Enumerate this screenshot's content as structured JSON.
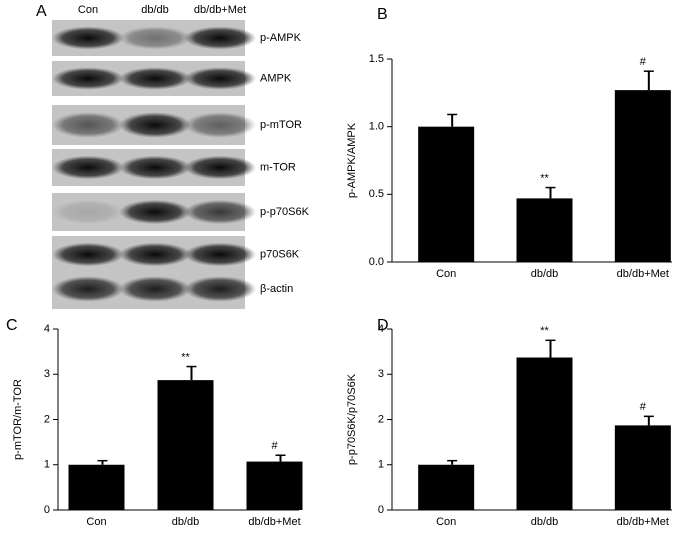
{
  "blot": {
    "panel_label": "A",
    "columns": [
      "Con",
      "db/db",
      "db/db+Met"
    ],
    "rows": [
      "p-AMPK",
      "AMPK",
      "p-mTOR",
      "m-TOR",
      "p-p70S6K",
      "p70S6K",
      "β-actin"
    ]
  },
  "chart_data": [
    {
      "type": "bar",
      "panel_label": "B",
      "ylabel": "p-AMPK/AMPK",
      "color": "#000000",
      "categories": [
        "Con",
        "db/db",
        "db/db+Met"
      ],
      "values": [
        1.0,
        0.47,
        1.27
      ],
      "errors": [
        0.09,
        0.08,
        0.14
      ],
      "annotations": [
        null,
        "**",
        "#"
      ],
      "ylim": [
        0,
        1.5
      ],
      "yticks": [
        {
          "value": 0,
          "label": "0.0"
        },
        {
          "value": 0.5,
          "label": "0.5"
        },
        {
          "value": 1,
          "label": "1.0"
        },
        {
          "value": 1.5,
          "label": "1.5"
        }
      ]
    },
    {
      "type": "bar",
      "panel_label": "C",
      "ylabel": "p-mTOR/m-TOR",
      "color": "#000000",
      "categories": [
        "Con",
        "db/db",
        "db/db+Met"
      ],
      "values": [
        1.0,
        2.87,
        1.07
      ],
      "errors": [
        0.09,
        0.3,
        0.14
      ],
      "annotations": [
        null,
        "**",
        "#"
      ],
      "ylim": [
        0,
        4
      ],
      "yticks": [
        0,
        1,
        2,
        3,
        4
      ]
    },
    {
      "type": "bar",
      "panel_label": "D",
      "ylabel": "p-p70S6K/p70S6K",
      "color": "#000000",
      "categories": [
        "Con",
        "db/db",
        "db/db+Met"
      ],
      "values": [
        1.0,
        3.37,
        1.87
      ],
      "errors": [
        0.09,
        0.38,
        0.2
      ],
      "annotations": [
        null,
        "**",
        "#"
      ],
      "ylim": [
        0,
        4
      ],
      "yticks": [
        0,
        1,
        2,
        3,
        4
      ]
    }
  ]
}
